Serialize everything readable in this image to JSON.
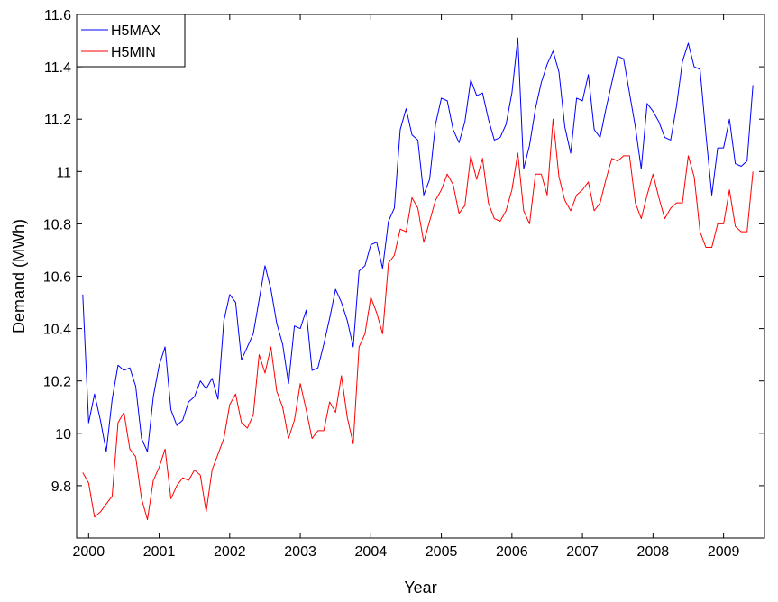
{
  "chart_data": {
    "type": "line",
    "xlabel": "Year",
    "ylabel": "Demand (MWh)",
    "xlim": [
      1999.83,
      2009.58
    ],
    "ylim": [
      9.6,
      11.6
    ],
    "x_ticks": [
      2000,
      2001,
      2002,
      2003,
      2004,
      2005,
      2006,
      2007,
      2008,
      2009
    ],
    "x_tick_labels": [
      "2000",
      "2001",
      "2002",
      "2003",
      "2004",
      "2005",
      "2006",
      "2007",
      "2008",
      "2009"
    ],
    "y_ticks": [
      9.8,
      10,
      10.2,
      10.4,
      10.6,
      10.8,
      11,
      11.2,
      11.4,
      11.6
    ],
    "y_tick_labels": [
      "9.8",
      "10",
      "10.2",
      "10.4",
      "10.6",
      "10.8",
      "11",
      "11.2",
      "11.4",
      "11.6"
    ],
    "grid": false,
    "legend_position": "top-left",
    "x_start": 1999.917,
    "x_step": 0.08333,
    "series": [
      {
        "name": "H5MAX",
        "color": "#0000ff",
        "values": [
          10.53,
          10.04,
          10.15,
          10.05,
          9.93,
          10.13,
          10.26,
          10.24,
          10.25,
          10.18,
          9.98,
          9.93,
          10.14,
          10.26,
          10.33,
          10.09,
          10.03,
          10.05,
          10.12,
          10.14,
          10.2,
          10.17,
          10.21,
          10.13,
          10.43,
          10.53,
          10.5,
          10.28,
          10.33,
          10.38,
          10.51,
          10.64,
          10.55,
          10.42,
          10.34,
          10.19,
          10.41,
          10.4,
          10.47,
          10.24,
          10.25,
          10.34,
          10.44,
          10.55,
          10.5,
          10.43,
          10.33,
          10.62,
          10.64,
          10.72,
          10.73,
          10.63,
          10.81,
          10.86,
          11.16,
          11.24,
          11.14,
          11.12,
          10.91,
          10.97,
          11.18,
          11.28,
          11.27,
          11.16,
          11.11,
          11.19,
          11.35,
          11.29,
          11.3,
          11.2,
          11.12,
          11.13,
          11.18,
          11.3,
          11.51,
          11.01,
          11.1,
          11.24,
          11.34,
          11.41,
          11.46,
          11.38,
          11.17,
          11.07,
          11.28,
          11.27,
          11.37,
          11.16,
          11.13,
          11.24,
          11.34,
          11.44,
          11.43,
          11.3,
          11.17,
          11.01,
          11.26,
          11.23,
          11.19,
          11.13,
          11.12,
          11.25,
          11.42,
          11.49,
          11.4,
          11.39,
          11.14,
          10.91,
          11.09,
          11.09,
          11.2,
          11.03,
          11.02,
          11.04,
          11.33
        ]
      },
      {
        "name": "H5MIN",
        "color": "#ff0000",
        "values": [
          9.85,
          9.81,
          9.68,
          9.7,
          9.73,
          9.76,
          10.04,
          10.08,
          9.94,
          9.91,
          9.75,
          9.67,
          9.82,
          9.87,
          9.94,
          9.75,
          9.8,
          9.83,
          9.82,
          9.86,
          9.84,
          9.7,
          9.86,
          9.92,
          9.98,
          10.11,
          10.15,
          10.04,
          10.02,
          10.07,
          10.3,
          10.23,
          10.33,
          10.16,
          10.1,
          9.98,
          10.05,
          10.19,
          10.09,
          9.98,
          10.01,
          10.01,
          10.12,
          10.08,
          10.22,
          10.06,
          9.96,
          10.33,
          10.38,
          10.52,
          10.46,
          10.38,
          10.65,
          10.68,
          10.78,
          10.77,
          10.9,
          10.86,
          10.73,
          10.81,
          10.89,
          10.93,
          10.99,
          10.95,
          10.84,
          10.87,
          11.06,
          10.97,
          11.05,
          10.88,
          10.82,
          10.81,
          10.85,
          10.93,
          11.07,
          10.85,
          10.8,
          10.99,
          10.99,
          10.91,
          11.2,
          10.98,
          10.89,
          10.85,
          10.91,
          10.93,
          10.96,
          10.85,
          10.88,
          10.97,
          11.05,
          11.04,
          11.06,
          11.06,
          10.88,
          10.82,
          10.91,
          10.99,
          10.9,
          10.82,
          10.86,
          10.88,
          10.88,
          11.06,
          10.98,
          10.77,
          10.71,
          10.71,
          10.8,
          10.8,
          10.93,
          10.79,
          10.77,
          10.77,
          11.0
        ]
      }
    ]
  }
}
